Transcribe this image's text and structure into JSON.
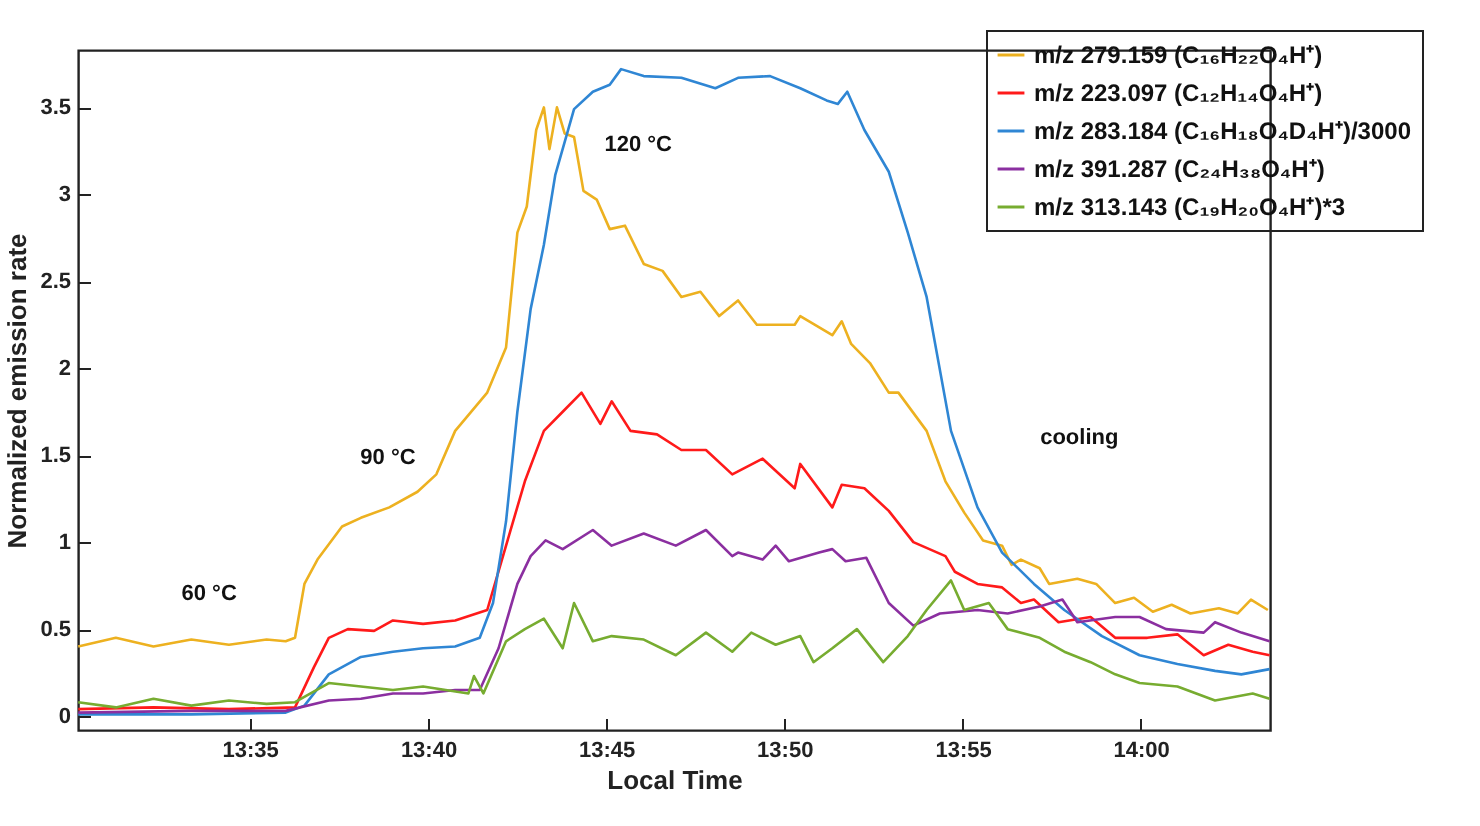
{
  "chart_data": {
    "type": "line",
    "xlabel": "Local Time",
    "ylabel": "Normalized emission rate",
    "xlim": [
      13.503,
      14.0605
    ],
    "ylim": [
      -0.08,
      3.83
    ],
    "xticks": [
      {
        "value": 13.5833,
        "label": "13:35"
      },
      {
        "value": 13.6667,
        "label": "13:40"
      },
      {
        "value": 13.75,
        "label": "13:45"
      },
      {
        "value": 13.8333,
        "label": "13:50"
      },
      {
        "value": 13.9167,
        "label": "13:55"
      },
      {
        "value": 14,
        "label": "14:00"
      }
    ],
    "yticks": [
      0,
      0.5,
      1,
      1.5,
      2,
      2.5,
      3,
      3.5
    ],
    "legend": "top right",
    "annotations": [
      "60 °C",
      "90 °C",
      "120 °C",
      "cooling"
    ],
    "series": [
      {
        "name": "m/z 279.159 (C₁₆H₂₂O₄H⁺)",
        "color": "#edb120",
        "x": [
          13.5031,
          13.5207,
          13.5383,
          13.556,
          13.5736,
          13.5912,
          13.6001,
          13.6045,
          13.6089,
          13.615,
          13.6265,
          13.6353,
          13.6486,
          13.6618,
          13.6706,
          13.6794,
          13.6944,
          13.7032,
          13.7085,
          13.7129,
          13.7173,
          13.7209,
          13.7235,
          13.727,
          13.7306,
          13.735,
          13.7394,
          13.7456,
          13.7517,
          13.7588,
          13.7676,
          13.7764,
          13.7852,
          13.7941,
          13.8029,
          13.8117,
          13.8205,
          13.8382,
          13.8408,
          13.8558,
          13.8602,
          13.8646,
          13.8734,
          13.8822,
          13.8867,
          13.8999,
          13.9087,
          13.9175,
          13.9263,
          13.9352,
          13.9396,
          13.944,
          13.9528,
          13.9572,
          13.9704,
          13.9792,
          13.9881,
          13.9969,
          14.0057,
          14.0145,
          14.0233,
          14.0366,
          14.0454,
          14.0516,
          14.0595
        ],
        "values": [
          0.4,
          0.45,
          0.4,
          0.44,
          0.41,
          0.44,
          0.43,
          0.45,
          0.76,
          0.9,
          1.09,
          1.14,
          1.2,
          1.29,
          1.39,
          1.64,
          1.86,
          2.12,
          2.78,
          2.93,
          3.37,
          3.5,
          3.26,
          3.5,
          3.35,
          3.33,
          3.02,
          2.97,
          2.8,
          2.82,
          2.6,
          2.56,
          2.41,
          2.44,
          2.3,
          2.39,
          2.25,
          2.25,
          2.3,
          2.19,
          2.27,
          2.14,
          2.03,
          1.86,
          1.86,
          1.64,
          1.35,
          1.17,
          1.01,
          0.98,
          0.87,
          0.9,
          0.85,
          0.76,
          0.79,
          0.76,
          0.65,
          0.68,
          0.6,
          0.64,
          0.59,
          0.62,
          0.59,
          0.67,
          0.61
        ]
      },
      {
        "name": "m/z 223.097 (C₁₂H₁₄O₄H⁺)",
        "color": "#ff1a1a",
        "x": [
          13.5031,
          13.5383,
          13.5736,
          13.6045,
          13.6133,
          13.6203,
          13.6292,
          13.6415,
          13.6503,
          13.6644,
          13.6794,
          13.6944,
          13.7032,
          13.712,
          13.7209,
          13.7297,
          13.7385,
          13.7473,
          13.7526,
          13.7614,
          13.7738,
          13.7852,
          13.7967,
          13.809,
          13.8232,
          13.8382,
          13.8408,
          13.8558,
          13.8602,
          13.8708,
          13.8822,
          13.8937,
          13.9087,
          13.9131,
          13.9237,
          13.9352,
          13.944,
          13.9501,
          13.9616,
          13.9766,
          13.9881,
          14.0031,
          14.0172,
          14.0295,
          14.041,
          14.0524,
          14.0603
        ],
        "values": [
          0.04,
          0.05,
          0.04,
          0.05,
          0.28,
          0.45,
          0.5,
          0.49,
          0.55,
          0.53,
          0.55,
          0.61,
          0.98,
          1.35,
          1.64,
          1.75,
          1.86,
          1.68,
          1.81,
          1.64,
          1.62,
          1.53,
          1.53,
          1.39,
          1.48,
          1.31,
          1.45,
          1.2,
          1.33,
          1.31,
          1.18,
          1.0,
          0.92,
          0.83,
          0.76,
          0.74,
          0.65,
          0.67,
          0.54,
          0.57,
          0.45,
          0.45,
          0.47,
          0.35,
          0.41,
          0.37,
          0.35
        ]
      },
      {
        "name": "m/z 283.184 (C₁₆H₁₈O₄D₄H⁺)/3000",
        "color": "#2f86d4",
        "x": [
          13.5031,
          13.556,
          13.6001,
          13.6089,
          13.6203,
          13.6353,
          13.6503,
          13.6644,
          13.6794,
          13.6909,
          13.6971,
          13.7032,
          13.7085,
          13.7147,
          13.7209,
          13.7262,
          13.735,
          13.7438,
          13.7517,
          13.757,
          13.7676,
          13.7852,
          13.8011,
          13.8117,
          13.8267,
          13.8408,
          13.8531,
          13.8584,
          13.8628,
          13.8708,
          13.8822,
          13.8911,
          13.8999,
          13.9113,
          13.9237,
          13.9352,
          13.9501,
          13.9643,
          13.9819,
          13.9995,
          14.0172,
          14.0348,
          14.0471,
          14.0603
        ],
        "values": [
          0.01,
          0.01,
          0.02,
          0.06,
          0.24,
          0.34,
          0.37,
          0.39,
          0.4,
          0.45,
          0.65,
          1.12,
          1.75,
          2.34,
          2.71,
          3.11,
          3.49,
          3.59,
          3.63,
          3.72,
          3.68,
          3.67,
          3.61,
          3.67,
          3.68,
          3.61,
          3.54,
          3.52,
          3.59,
          3.37,
          3.13,
          2.78,
          2.41,
          1.64,
          1.2,
          0.94,
          0.76,
          0.61,
          0.46,
          0.35,
          0.3,
          0.26,
          0.24,
          0.27
        ]
      },
      {
        "name": "m/z 391.287 (C₂₄H₃₈O₄H⁺)",
        "color": "#8b2fa0",
        "x": [
          13.5031,
          13.556,
          13.6001,
          13.6203,
          13.6353,
          13.6503,
          13.6644,
          13.6794,
          13.6909,
          13.6997,
          13.7085,
          13.7147,
          13.7217,
          13.7297,
          13.7438,
          13.7526,
          13.7676,
          13.7826,
          13.7967,
          13.809,
          13.8117,
          13.8232,
          13.8293,
          13.8355,
          13.8496,
          13.8558,
          13.862,
          13.8717,
          13.8822,
          13.8937,
          13.9061,
          13.9237,
          13.9378,
          13.9528,
          13.9634,
          13.9704,
          13.9881,
          13.9995,
          14.0119,
          14.0295,
          14.0348,
          14.0471,
          14.0603
        ],
        "values": [
          0.02,
          0.03,
          0.03,
          0.09,
          0.1,
          0.13,
          0.13,
          0.15,
          0.15,
          0.39,
          0.76,
          0.92,
          1.01,
          0.96,
          1.07,
          0.98,
          1.05,
          0.98,
          1.07,
          0.92,
          0.94,
          0.9,
          0.98,
          0.89,
          0.94,
          0.96,
          0.89,
          0.91,
          0.65,
          0.52,
          0.59,
          0.61,
          0.59,
          0.63,
          0.67,
          0.54,
          0.57,
          0.57,
          0.5,
          0.48,
          0.54,
          0.48,
          0.43
        ]
      },
      {
        "name": "m/z 313.143 (C₁₉H₂₀O₄H⁺)*3",
        "color": "#77ac30",
        "x": [
          13.5031,
          13.5207,
          13.5383,
          13.556,
          13.5736,
          13.5912,
          13.6045,
          13.6203,
          13.6353,
          13.6503,
          13.6644,
          13.6856,
          13.6882,
          13.6926,
          13.7032,
          13.712,
          13.7209,
          13.7297,
          13.735,
          13.7438,
          13.7526,
          13.7676,
          13.7826,
          13.7967,
          13.809,
          13.8179,
          13.8293,
          13.8408,
          13.847,
          13.8558,
          13.8673,
          13.8796,
          13.8911,
          13.8999,
          13.9113,
          13.9175,
          13.929,
          13.9378,
          13.9528,
          13.9643,
          13.9766,
          13.9881,
          13.9995,
          14.0172,
          14.0348,
          14.0524,
          14.0603
        ],
        "values": [
          0.08,
          0.05,
          0.1,
          0.06,
          0.09,
          0.07,
          0.08,
          0.19,
          0.17,
          0.15,
          0.17,
          0.13,
          0.23,
          0.13,
          0.43,
          0.5,
          0.56,
          0.39,
          0.65,
          0.43,
          0.46,
          0.44,
          0.35,
          0.48,
          0.37,
          0.48,
          0.41,
          0.46,
          0.31,
          0.39,
          0.5,
          0.31,
          0.46,
          0.61,
          0.78,
          0.61,
          0.65,
          0.5,
          0.45,
          0.37,
          0.31,
          0.24,
          0.19,
          0.17,
          0.09,
          0.13,
          0.1
        ]
      }
    ]
  }
}
